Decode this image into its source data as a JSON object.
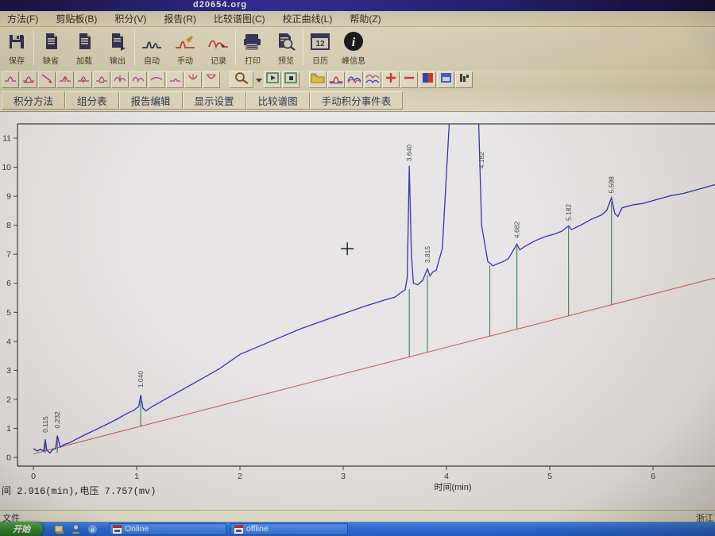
{
  "window": {
    "title": "d20654.org"
  },
  "menu": {
    "items": [
      {
        "name": "menu-method",
        "label": "方法(F)"
      },
      {
        "name": "menu-clipboard",
        "label": "剪贴板(B)"
      },
      {
        "name": "menu-integration",
        "label": "积分(V)"
      },
      {
        "name": "menu-report",
        "label": "报告(R)"
      },
      {
        "name": "menu-compare-chromatogram",
        "label": "比较谱图(C)"
      },
      {
        "name": "menu-calibration-curve",
        "label": "校正曲线(L)"
      },
      {
        "name": "menu-help",
        "label": "帮助(Z)"
      }
    ]
  },
  "toolbar_main": {
    "buttons": [
      {
        "name": "save",
        "label": "保存",
        "icon": "floppy-icon",
        "group": 0
      },
      {
        "name": "default",
        "label": "缺省",
        "icon": "document-icon",
        "group": 1
      },
      {
        "name": "load",
        "label": "加载",
        "icon": "document-icon",
        "group": 1
      },
      {
        "name": "export",
        "label": "输出",
        "icon": "document-out-icon",
        "group": 1
      },
      {
        "name": "auto-integrate",
        "label": "自动",
        "icon": "auto-peak-icon",
        "group": 2
      },
      {
        "name": "manual-integrate",
        "label": "手动",
        "icon": "manual-peak-icon",
        "group": 2
      },
      {
        "name": "record",
        "label": "记录",
        "icon": "record-peak-icon",
        "group": 2
      },
      {
        "name": "print",
        "label": "打印",
        "icon": "printer-icon",
        "group": 3
      },
      {
        "name": "preview",
        "label": "预览",
        "icon": "preview-icon",
        "group": 3
      },
      {
        "name": "calendar",
        "label": "日历",
        "icon": "calendar-icon",
        "group": 4
      },
      {
        "name": "peak-info",
        "label": "峰信息",
        "icon": "info-icon",
        "group": 4
      }
    ]
  },
  "toolbar_small": {
    "peak_tools": [
      {
        "name": "peak-tool-1",
        "icon": "peak-baseline-icon"
      },
      {
        "name": "peak-tool-2",
        "icon": "peak-baseline2-icon"
      },
      {
        "name": "peak-tool-3",
        "icon": "peak-slope-icon"
      },
      {
        "name": "peak-tool-4",
        "icon": "peak-drop-icon"
      },
      {
        "name": "peak-tool-5",
        "icon": "peak-plus-icon"
      },
      {
        "name": "peak-tool-6",
        "icon": "peak-minus-icon"
      },
      {
        "name": "peak-tool-7",
        "icon": "peak-split-icon"
      },
      {
        "name": "peak-tool-8",
        "icon": "peak-merge-icon"
      },
      {
        "name": "peak-tool-9",
        "icon": "peak-curve-icon"
      },
      {
        "name": "peak-tool-10",
        "icon": "peak-small-icon"
      },
      {
        "name": "peak-tool-11",
        "icon": "valley-icon"
      },
      {
        "name": "peak-tool-12",
        "icon": "valley2-icon"
      }
    ],
    "view_tools": [
      {
        "name": "zoom-tool",
        "icon": "magnifier-icon",
        "wide": true
      },
      {
        "name": "zoom-dropdown",
        "icon": "dropdown-arrow-icon",
        "drop": true
      },
      {
        "name": "play-view",
        "icon": "play-icon"
      },
      {
        "name": "record-view",
        "icon": "record-icon"
      },
      {
        "name": "gap1",
        "icon": "gap"
      },
      {
        "name": "open-file",
        "icon": "open-folder-icon"
      },
      {
        "name": "show-peak",
        "icon": "single-peak-icon"
      },
      {
        "name": "overlay-peaks",
        "icon": "overlay-peaks-icon"
      },
      {
        "name": "stack-peaks",
        "icon": "stacked-peaks-icon"
      },
      {
        "name": "zoom-in",
        "icon": "plus-icon"
      },
      {
        "name": "zoom-out",
        "icon": "minus-icon"
      },
      {
        "name": "color-map",
        "icon": "palette-icon"
      },
      {
        "name": "color-chart",
        "icon": "chart-color-icon"
      },
      {
        "name": "bar-columns",
        "icon": "bar-columns-icon"
      }
    ]
  },
  "tabs": {
    "items": [
      {
        "name": "tab-integration-method",
        "label": "积分方法"
      },
      {
        "name": "tab-component-table",
        "label": "组分表"
      },
      {
        "name": "tab-report-edit",
        "label": "报告编辑"
      },
      {
        "name": "tab-display-settings",
        "label": "显示设置"
      },
      {
        "name": "tab-compare-chromatogram",
        "label": "比较谱图"
      },
      {
        "name": "tab-manual-integration-events",
        "label": "手动积分事件表"
      }
    ]
  },
  "chart_data": {
    "type": "line",
    "title": "",
    "xlabel": "时间(min)",
    "ylabel": "",
    "xlim": [
      0,
      6.6
    ],
    "ylim": [
      0,
      11
    ],
    "x_ticks": [
      0,
      1,
      2,
      3,
      4,
      5,
      6
    ],
    "y_ticks": [
      0,
      1,
      2,
      3,
      4,
      5,
      6,
      7,
      8,
      9,
      10,
      11
    ],
    "grid": false,
    "legend": false,
    "colors": {
      "trace": "#2a2ab4",
      "baseline": "#c75b5b",
      "peak_marker": "#2e7d4f",
      "axis": "#3a3a3a",
      "label": "#3c3c3c"
    },
    "series": [
      {
        "name": "detector-signal-mv",
        "points": [
          [
            0.0,
            0.3
          ],
          [
            0.04,
            0.22
          ],
          [
            0.07,
            0.28
          ],
          [
            0.1,
            0.22
          ],
          [
            0.115,
            0.62
          ],
          [
            0.13,
            0.25
          ],
          [
            0.16,
            0.15
          ],
          [
            0.19,
            0.28
          ],
          [
            0.215,
            0.3
          ],
          [
            0.232,
            0.75
          ],
          [
            0.26,
            0.35
          ],
          [
            0.3,
            0.45
          ],
          [
            0.35,
            0.5
          ],
          [
            0.4,
            0.6
          ],
          [
            0.5,
            0.78
          ],
          [
            0.6,
            0.95
          ],
          [
            0.7,
            1.12
          ],
          [
            0.8,
            1.3
          ],
          [
            0.9,
            1.5
          ],
          [
            0.97,
            1.62
          ],
          [
            1.02,
            1.75
          ],
          [
            1.04,
            2.15
          ],
          [
            1.06,
            1.7
          ],
          [
            1.09,
            1.6
          ],
          [
            1.15,
            1.75
          ],
          [
            1.25,
            1.95
          ],
          [
            1.4,
            2.25
          ],
          [
            1.6,
            2.65
          ],
          [
            1.8,
            3.05
          ],
          [
            2.0,
            3.55
          ],
          [
            2.2,
            3.85
          ],
          [
            2.4,
            4.15
          ],
          [
            2.6,
            4.45
          ],
          [
            2.8,
            4.7
          ],
          [
            3.0,
            4.95
          ],
          [
            3.2,
            5.2
          ],
          [
            3.4,
            5.42
          ],
          [
            3.5,
            5.52
          ],
          [
            3.56,
            5.68
          ],
          [
            3.6,
            5.78
          ],
          [
            3.62,
            6.2
          ],
          [
            3.64,
            10.05
          ],
          [
            3.66,
            7.0
          ],
          [
            3.68,
            6.0
          ],
          [
            3.72,
            5.95
          ],
          [
            3.77,
            6.1
          ],
          [
            3.815,
            6.5
          ],
          [
            3.84,
            6.25
          ],
          [
            3.87,
            6.4
          ],
          [
            3.9,
            6.45
          ],
          [
            3.96,
            7.2
          ],
          [
            4.05,
            13.0
          ],
          [
            4.182,
            14.0
          ],
          [
            4.3,
            13.0
          ],
          [
            4.34,
            8.0
          ],
          [
            4.4,
            6.75
          ],
          [
            4.45,
            6.6
          ],
          [
            4.5,
            6.68
          ],
          [
            4.55,
            6.75
          ],
          [
            4.6,
            6.85
          ],
          [
            4.682,
            7.35
          ],
          [
            4.71,
            7.15
          ],
          [
            4.75,
            7.25
          ],
          [
            4.85,
            7.45
          ],
          [
            4.95,
            7.6
          ],
          [
            5.05,
            7.7
          ],
          [
            5.12,
            7.8
          ],
          [
            5.182,
            7.98
          ],
          [
            5.21,
            7.85
          ],
          [
            5.3,
            8.0
          ],
          [
            5.4,
            8.2
          ],
          [
            5.5,
            8.35
          ],
          [
            5.55,
            8.5
          ],
          [
            5.598,
            8.95
          ],
          [
            5.63,
            8.4
          ],
          [
            5.66,
            8.3
          ],
          [
            5.7,
            8.6
          ],
          [
            5.8,
            8.7
          ],
          [
            5.9,
            8.75
          ],
          [
            6.0,
            8.85
          ],
          [
            6.15,
            9.0
          ],
          [
            6.3,
            9.1
          ],
          [
            6.45,
            9.25
          ],
          [
            6.6,
            9.4
          ]
        ]
      }
    ],
    "baseline": {
      "from": [
        0,
        0.12
      ],
      "to": [
        6.6,
        6.18
      ]
    },
    "peaks": [
      {
        "label": "0.115",
        "t": 0.115,
        "label_v": 0.85,
        "drop_t": 0.115,
        "drop_top": 0.55,
        "drop_bottom": 0.14
      },
      {
        "label": "0.232",
        "t": 0.232,
        "label_v": 1.0,
        "drop_t": 0.232,
        "drop_top": 0.62,
        "drop_bottom": 0.16
      },
      {
        "label": "1.040",
        "t": 1.04,
        "label_v": 2.4,
        "drop_t": 1.04,
        "drop_top": 1.95,
        "drop_bottom": 1.08
      },
      {
        "label": "3.640",
        "t": 3.64,
        "label_v": 10.2,
        "drop_t": 3.64,
        "drop_top": 5.8,
        "drop_bottom": 3.47
      },
      {
        "label": "3.815",
        "t": 3.815,
        "label_v": 6.7,
        "drop_t": 3.815,
        "drop_top": 6.28,
        "drop_bottom": 3.63
      },
      {
        "label": "4.182",
        "t": 4.34,
        "label_v": 9.95,
        "drop_t": 4.42,
        "drop_top": 6.62,
        "drop_bottom": 4.18
      },
      {
        "label": "4.682",
        "t": 4.682,
        "label_v": 7.55,
        "drop_t": 4.682,
        "drop_top": 7.28,
        "drop_bottom": 4.43
      },
      {
        "label": "5.182",
        "t": 5.182,
        "label_v": 8.15,
        "drop_t": 5.182,
        "drop_top": 7.95,
        "drop_bottom": 4.89
      },
      {
        "label": "5.598",
        "t": 5.598,
        "label_v": 9.1,
        "drop_t": 5.598,
        "drop_top": 8.82,
        "drop_bottom": 5.27
      }
    ],
    "cursor": {
      "t": 3.04,
      "v": 7.19
    }
  },
  "status_bar": {
    "text": "间  2.916(min),电压 7.757(mv)"
  },
  "bottom_strip": {
    "left": "文件",
    "right": "浙江"
  },
  "taskbar": {
    "start_label": "开始",
    "quick_launch": [
      {
        "name": "show-desktop-icon"
      },
      {
        "name": "user-app-icon"
      },
      {
        "name": "browser-icon"
      }
    ],
    "tasks": [
      {
        "name": "task-online",
        "label": "Online",
        "active": false
      },
      {
        "name": "task-offline",
        "label": "offline",
        "active": false
      }
    ]
  }
}
